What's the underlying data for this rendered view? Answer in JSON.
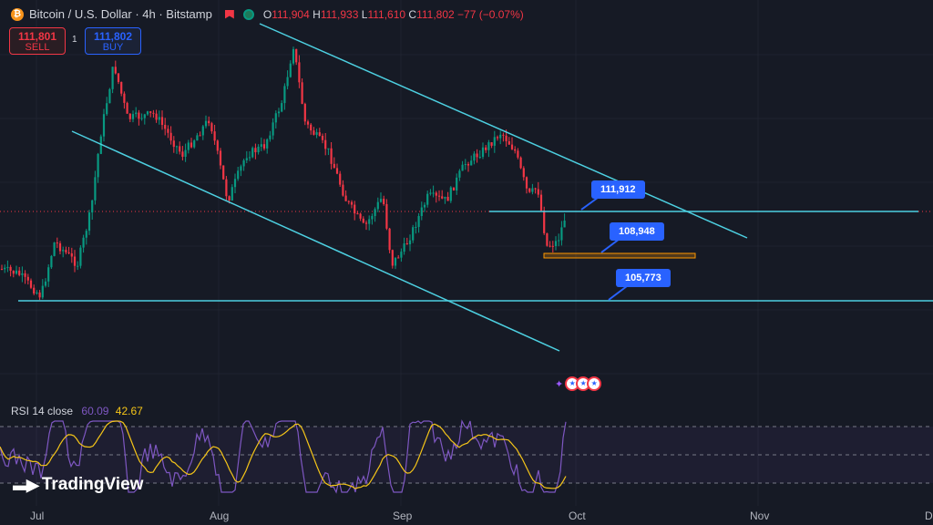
{
  "header": {
    "symbol_title": "Bitcoin / U.S. Dollar · 4h · Bitstamp",
    "ohlc": {
      "o_label": "O",
      "o": "111,904",
      "h_label": "H",
      "h": "111,933",
      "l_label": "L",
      "l": "111,610",
      "c_label": "C",
      "c": "111,802",
      "change": "−77 (−0.07%)"
    }
  },
  "trade": {
    "sell_price": "111,801",
    "sell_label": "SELL",
    "quantity": "1",
    "buy_price": "111,802",
    "buy_label": "BUY"
  },
  "annotations": {
    "tag1": "111,912",
    "tag2": "108,948",
    "tag3": "105,773"
  },
  "rsi": {
    "label": "RSI 14 close",
    "value": "60.09",
    "ma_value": "42.67"
  },
  "brand": "TradingView",
  "x_axis": [
    "Jul",
    "Aug",
    "Sep",
    "Oct",
    "Nov",
    "D"
  ],
  "colors": {
    "up": "#089981",
    "down": "#f23645",
    "trendline": "#4dd0e1",
    "rsi": "#7e57c2",
    "rsi_ma": "#f5c518",
    "tag": "#2962ff",
    "zone": "#ff9800"
  },
  "icons": {
    "symbol": "bitcoin-icon",
    "flag": "flag-icon",
    "status": "market-status-icon"
  }
}
